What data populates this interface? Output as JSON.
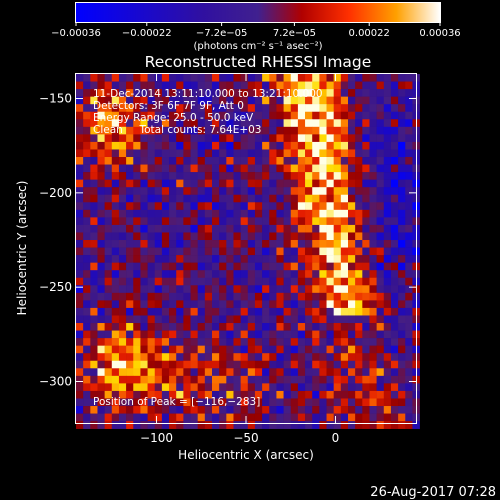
{
  "chart_data": {
    "type": "heatmap",
    "title": "Reconstructed RHESSI Image",
    "xlabel": "Heliocentric X (arcsec)",
    "ylabel": "Heliocentric Y (arcsec)",
    "xlim": [
      -145,
      45
    ],
    "ylim": [
      -322,
      -137
    ],
    "x_ticks": [
      -100,
      -50,
      0
    ],
    "y_ticks": [
      -150,
      -200,
      -250,
      -300
    ],
    "x_tick_labels": [
      "−100",
      "−50",
      "0"
    ],
    "y_tick_labels": [
      "−150",
      "−200",
      "−250",
      "−300"
    ],
    "colorbar": {
      "min": -0.00036,
      "max": 0.00036,
      "ticks": [
        -0.00036,
        -0.00022,
        -7.2e-05,
        7.2e-05,
        0.00022,
        0.00036
      ],
      "tick_labels": [
        "−0.00036",
        "−0.00022",
        "−7.2e−05",
        "7.2e−05",
        "0.00022",
        "0.00036"
      ],
      "unit_label": "(photons cm⁻² s⁻¹ asec⁻²)"
    },
    "grid": false,
    "pixel_size_arcsec": 4,
    "peak": [
      -116,
      -283
    ],
    "annotations": {
      "time_range": "11-Dec-2014 13:11:10.000 to 13:21:10.000",
      "detectors": "Detectors: 3F 6F 7F 9F, Att 0",
      "energy_range": "Energy Range: 25.0 - 50.0 keV",
      "clean_counts": "Clean     Total counts: 7.64E+03",
      "peak_position": "Position of Peak = [−116,−283]"
    },
    "structure": "Reconstructed image: bright (yellow/white) elongated ridge running from roughly (-15,-150) down to (5,-255), secondary bright patches near (-125,-165) and (-125,-285)–(-105,-300), mixed red/purple/blue background noise."
  },
  "footer": {
    "timestamp": "26-Aug-2017 07:28"
  }
}
